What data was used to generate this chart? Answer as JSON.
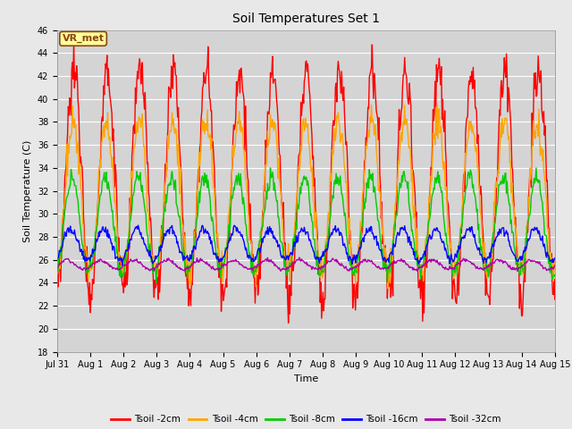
{
  "title": "Soil Temperatures Set 1",
  "xlabel": "Time",
  "ylabel": "Soil Temperature (C)",
  "ylim": [
    18,
    46
  ],
  "yticks": [
    18,
    20,
    22,
    24,
    26,
    28,
    30,
    32,
    34,
    36,
    38,
    40,
    42,
    44,
    46
  ],
  "xtick_labels": [
    "Jul 31",
    "Aug 1",
    "Aug 2",
    "Aug 3",
    "Aug 4",
    "Aug 5",
    "Aug 6",
    "Aug 7",
    "Aug 8",
    "Aug 9",
    "Aug 10",
    "Aug 11",
    "Aug 12",
    "Aug 13",
    "Aug 14",
    "Aug 15"
  ],
  "colors": {
    "Tsoil -2cm": "#ff0000",
    "Tsoil -4cm": "#ffa500",
    "Tsoil -8cm": "#00cc00",
    "Tsoil -16cm": "#0000ff",
    "Tsoil -32cm": "#aa00aa"
  },
  "background_color": "#e8e8e8",
  "plot_bg_color": "#d4d4d4",
  "annotation_text": "VR_met",
  "annotation_bg": "#ffff99",
  "annotation_border": "#8b4513",
  "num_days": 15,
  "points_per_day": 48,
  "series": {
    "Tsoil -2cm": {
      "base": 26.5,
      "amp": 11.0,
      "phase": 0.0,
      "min": 20.5,
      "max": 45.0
    },
    "Tsoil -4cm": {
      "base": 26.0,
      "amp": 7.0,
      "phase": 0.15,
      "min": 23.5,
      "max": 39.5
    },
    "Tsoil -8cm": {
      "base": 27.5,
      "amp": 4.0,
      "phase": 0.35,
      "min": 24.0,
      "max": 34.0
    },
    "Tsoil -16cm": {
      "base": 27.0,
      "amp": 1.3,
      "phase": 0.6,
      "min": 25.5,
      "max": 29.0
    },
    "Tsoil -32cm": {
      "base": 25.5,
      "amp": 0.4,
      "phase": 1.2,
      "min": 25.0,
      "max": 26.2
    }
  }
}
